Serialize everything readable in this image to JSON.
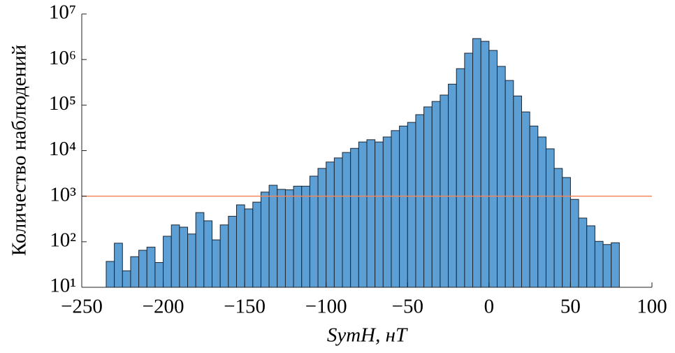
{
  "chart_data": {
    "type": "histogram",
    "xlabel": "SymH, нТ",
    "ylabel": "Количество наблюдений",
    "bins": [
      -235,
      -230,
      -225,
      -220,
      -215,
      -210,
      -205,
      -200,
      -195,
      -190,
      -185,
      -180,
      -175,
      -170,
      -165,
      -160,
      -155,
      -150,
      -145,
      -140,
      -135,
      -130,
      -125,
      -120,
      -115,
      -110,
      -105,
      -100,
      -95,
      -90,
      -85,
      -80,
      -75,
      -70,
      -65,
      -60,
      -55,
      -50,
      -45,
      -40,
      -35,
      -30,
      -25,
      -20,
      -15,
      -10,
      -5,
      0,
      5,
      10,
      15,
      20,
      25,
      30,
      35,
      40,
      45,
      50,
      55,
      60,
      65,
      70,
      75,
      80
    ],
    "values": [
      37,
      93,
      23,
      47,
      65,
      76,
      35,
      132,
      234,
      209,
      148,
      437,
      288,
      110,
      234,
      363,
      646,
      525,
      741,
      1230,
      1738,
      1413,
      1380,
      1660,
      1660,
      2754,
      4074,
      5623,
      6918,
      9120,
      11220,
      15490,
      17380,
      15490,
      19950,
      27540,
      34670,
      41690,
      61660,
      91200,
      120200,
      166000,
      288400,
      631000,
      1380000,
      2884000,
      2512000,
      1585000,
      708000,
      347000,
      158500,
      70800,
      34700,
      19950,
      10960,
      4070,
      2570,
      851,
      331,
      224,
      102,
      87,
      95
    ],
    "color": "#5b9fd5",
    "edge_color": "#1b2633",
    "xlim": [
      -250,
      100
    ],
    "xticks": [
      {
        "value": -250,
        "label": "−250"
      },
      {
        "value": -200,
        "label": "−200"
      },
      {
        "value": -150,
        "label": "−150"
      },
      {
        "value": -100,
        "label": "−100"
      },
      {
        "value": -50,
        "label": "−50"
      },
      0,
      50,
      100
    ],
    "ylim": [
      10,
      10000000
    ],
    "log_y": true,
    "yticks": [
      {
        "value": 10,
        "label": "10¹"
      },
      {
        "value": 100,
        "label": "10²"
      },
      {
        "value": 1000,
        "label": "10³"
      },
      {
        "value": 10000,
        "label": "10⁴"
      },
      {
        "value": 100000,
        "label": "10⁵"
      },
      {
        "value": 1000000,
        "label": "10⁶"
      },
      {
        "value": 10000000,
        "label": "10⁷"
      }
    ],
    "reference_line": 1000,
    "reference_color": "#f4875a"
  }
}
